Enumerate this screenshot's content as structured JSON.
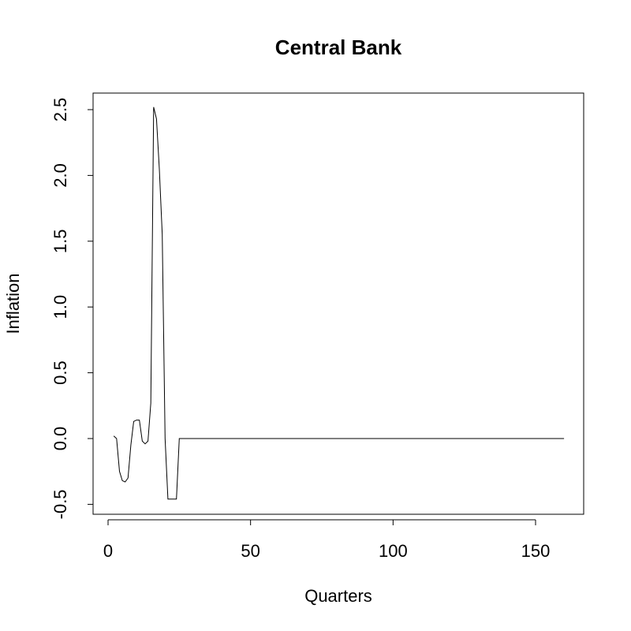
{
  "chart_data": {
    "type": "line",
    "title": "Central Bank",
    "xlabel": "Quarters",
    "ylabel": "Inflation",
    "xlim": [
      1,
      160
    ],
    "ylim": [
      -0.5,
      2.5
    ],
    "x_ticks": [
      0,
      50,
      100,
      150
    ],
    "x_tick_labels": [
      "0",
      "50",
      "100",
      "150"
    ],
    "y_ticks": [
      -0.5,
      0.0,
      0.5,
      1.0,
      1.5,
      2.0,
      2.5
    ],
    "y_tick_labels": [
      "-0.5",
      "0.0",
      "0.5",
      "1.0",
      "1.5",
      "2.0",
      "2.5"
    ],
    "grid": false,
    "series": [
      {
        "x": [
          2,
          3,
          4,
          5,
          6,
          7,
          8,
          9,
          10,
          11,
          12,
          13,
          14,
          15,
          16,
          17,
          18,
          19,
          20,
          21,
          22,
          23,
          24,
          25,
          160
        ],
        "y": [
          0.02,
          0.0,
          -0.25,
          -0.32,
          -0.33,
          -0.3,
          -0.05,
          0.13,
          0.14,
          0.14,
          -0.02,
          -0.04,
          -0.02,
          0.27,
          2.52,
          2.43,
          2.05,
          1.55,
          0.0,
          -0.46,
          -0.46,
          -0.46,
          -0.46,
          0.0,
          0.0
        ]
      }
    ]
  }
}
